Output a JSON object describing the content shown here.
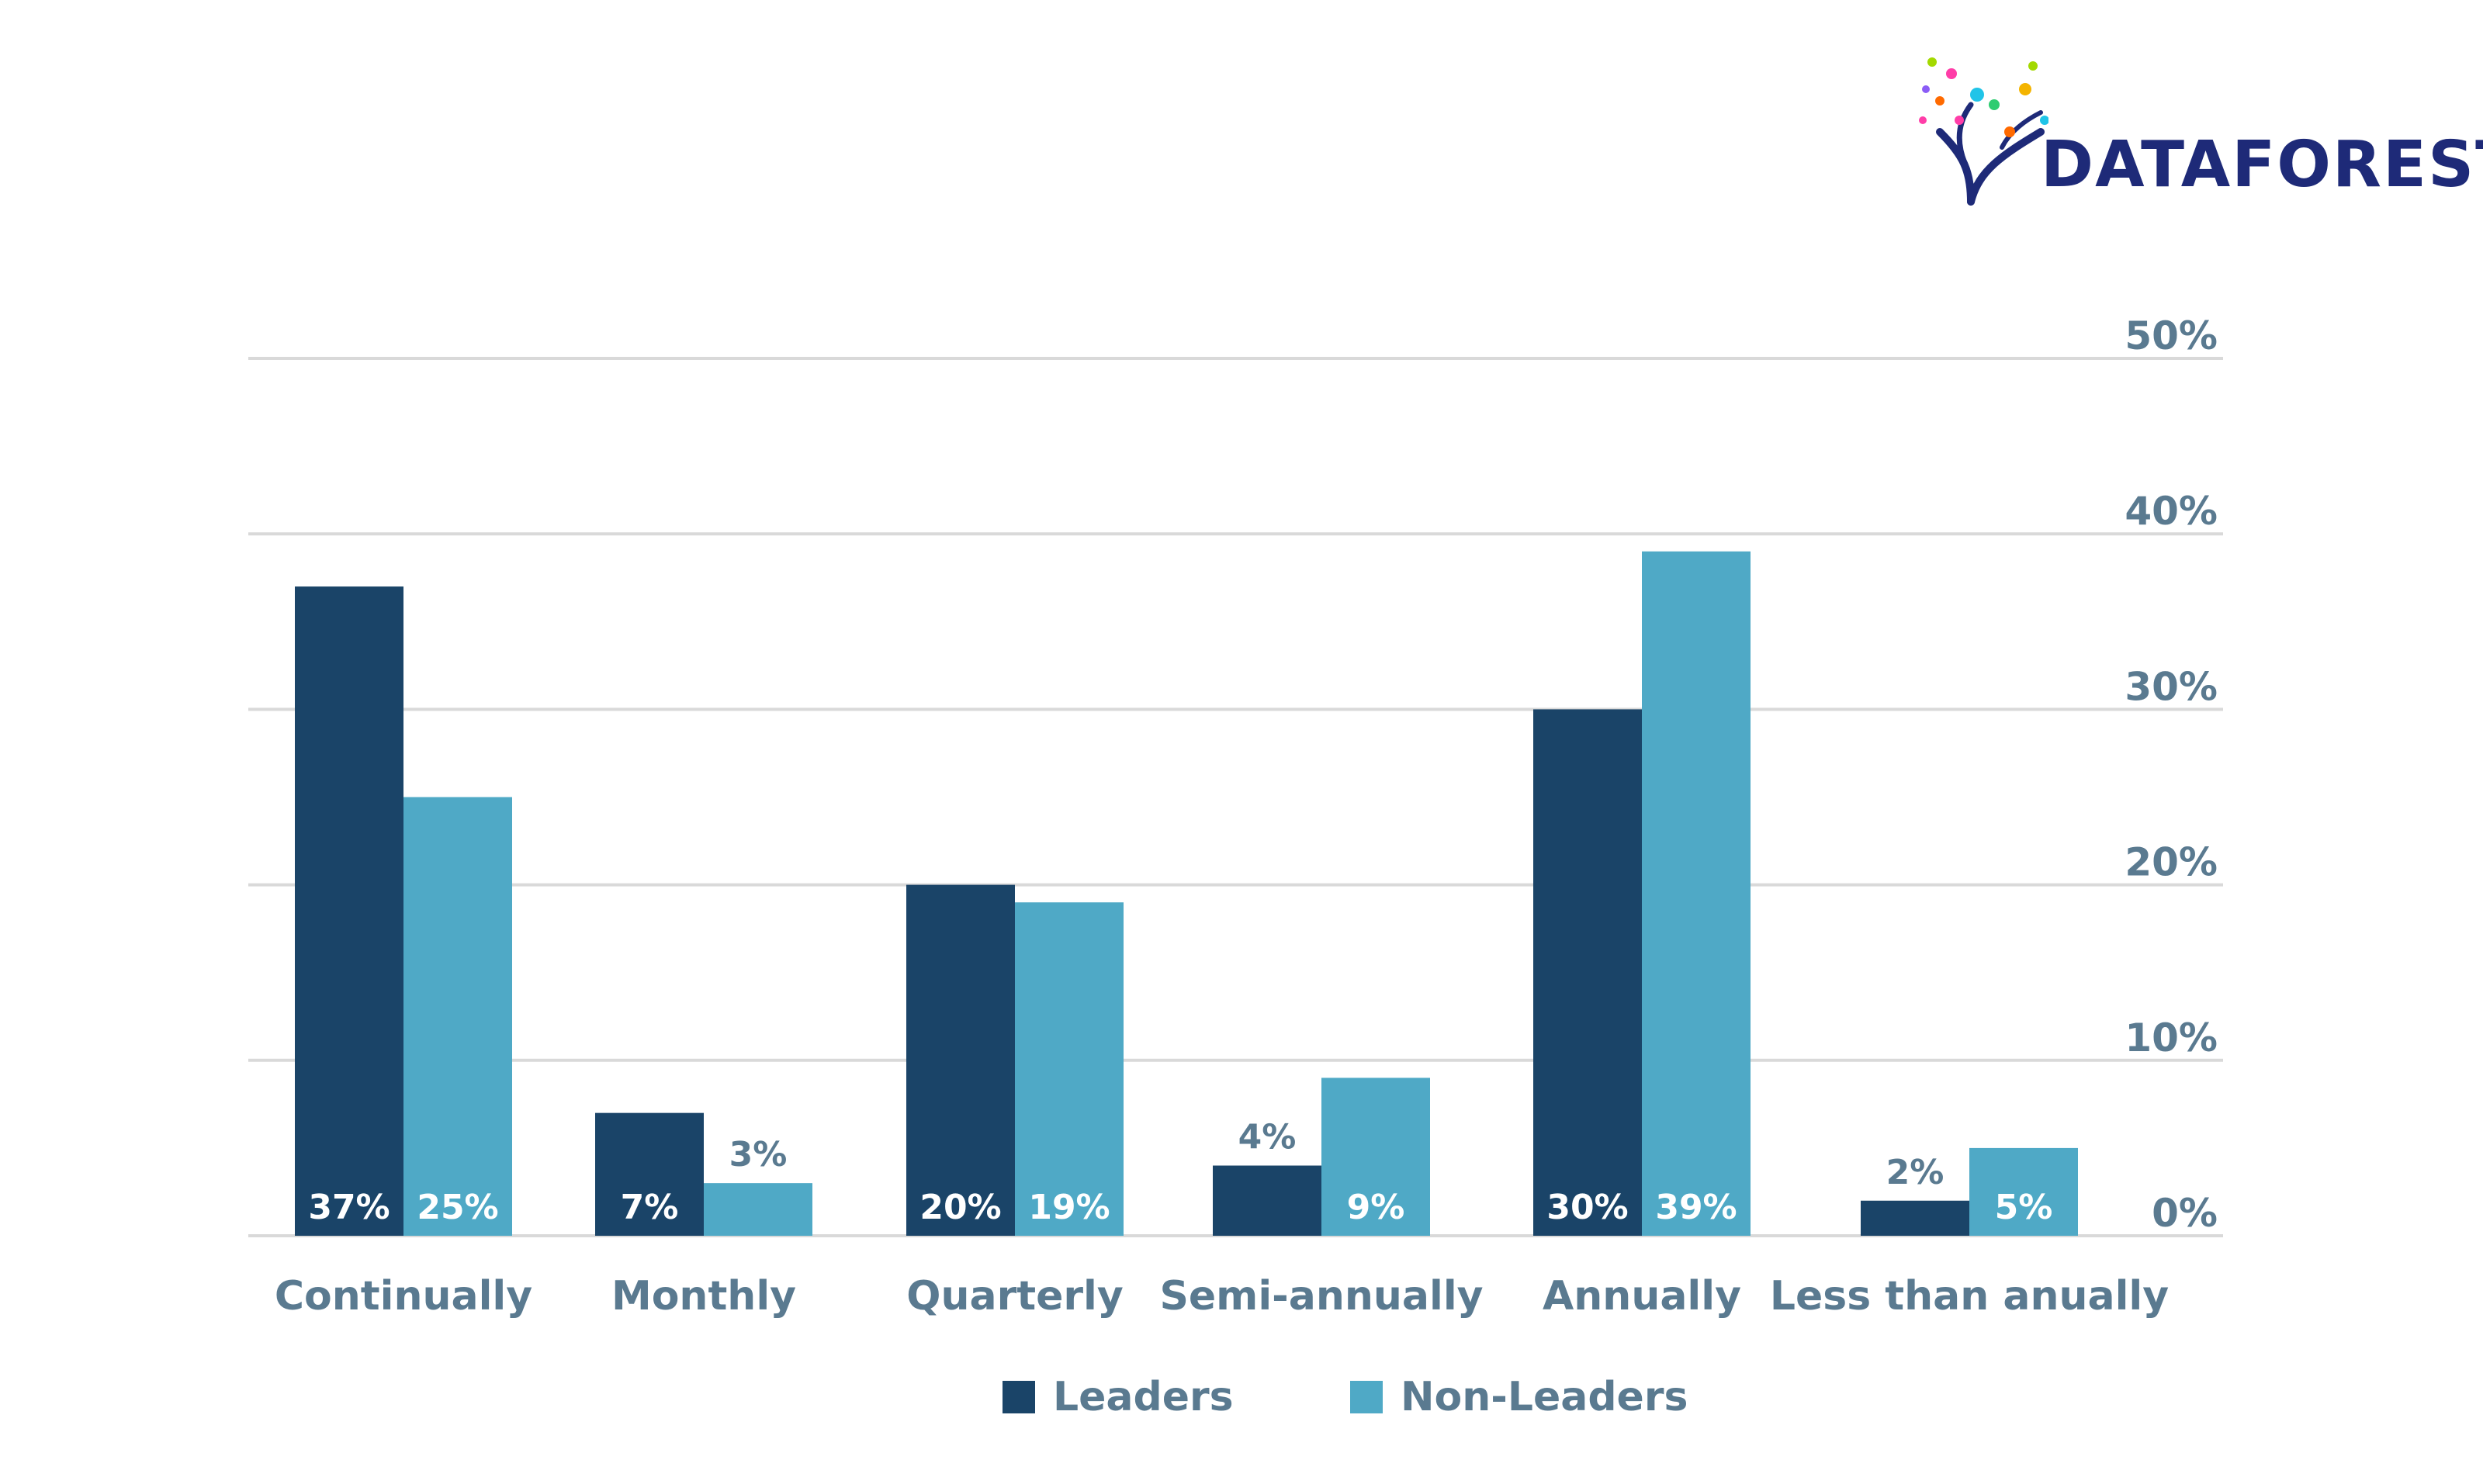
{
  "brand": {
    "logo_text": "DATAFOREST"
  },
  "colors": {
    "leaders": "#1a4468",
    "non_leaders": "#4fa9c6",
    "axis_text": "#5a7a90",
    "grid": "#d9d9d9",
    "label_inside": "#ffffff",
    "logo_text": "#1e2a78"
  },
  "chart_data": {
    "type": "bar",
    "categories": [
      "Continually",
      "Monthly",
      "Quarterly",
      "Semi-annually",
      "Annually",
      "Less than anually"
    ],
    "series": [
      {
        "name": "Leaders",
        "values": [
          37,
          7,
          20,
          4,
          30,
          2
        ],
        "labels": [
          "37%",
          "7%",
          "20%",
          "4%",
          "30%",
          "2%"
        ]
      },
      {
        "name": "Non-Leaders",
        "values": [
          25,
          3,
          19,
          9,
          39,
          5
        ],
        "labels": [
          "25%",
          "3%",
          "19%",
          "9%",
          "39%",
          "5%"
        ]
      }
    ],
    "ylim": [
      0,
      50
    ],
    "yticks": [
      "0%",
      "10%",
      "20%",
      "30%",
      "40%",
      "50%"
    ],
    "y_axis_side": "right",
    "grid": true,
    "legend_position": "bottom-center"
  }
}
